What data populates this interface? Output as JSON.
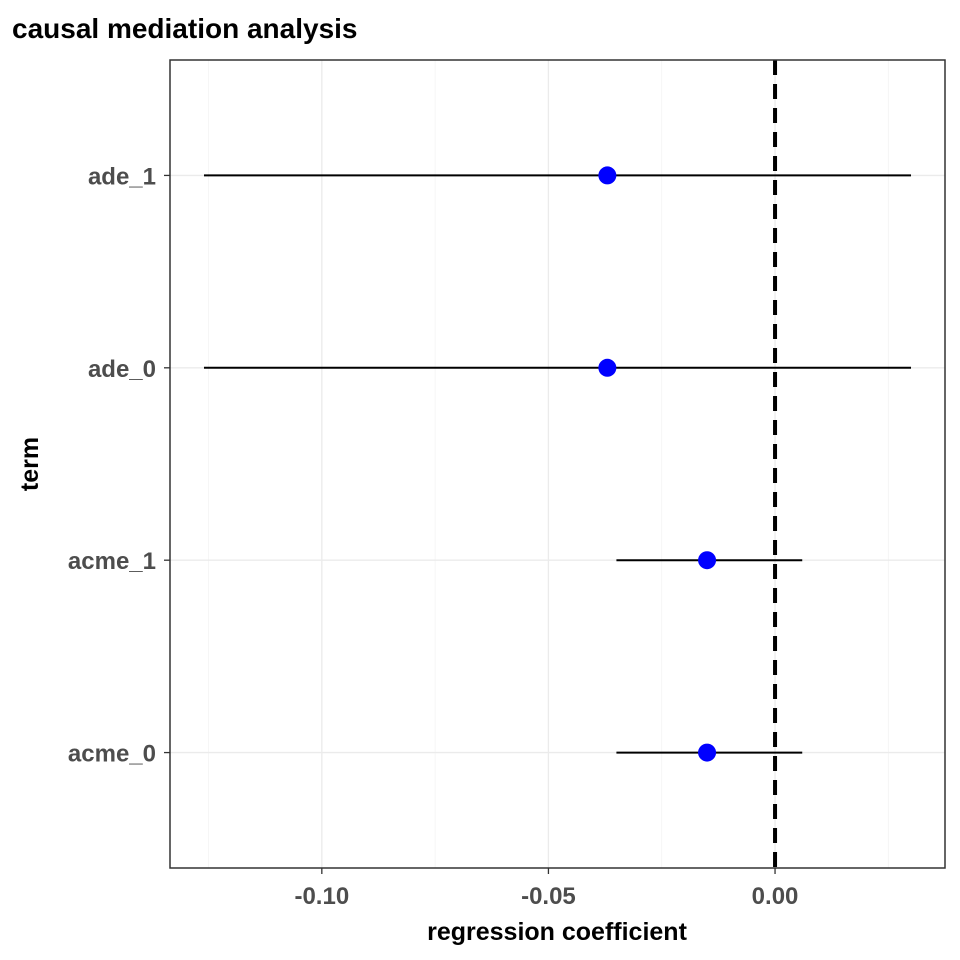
{
  "chart_data": {
    "type": "scatter",
    "subtype": "coefficient-plot",
    "title": "causal mediation analysis",
    "xlabel": "regression coefficient",
    "ylabel": "term",
    "xlim": [
      -0.1335,
      0.0375
    ],
    "x_ticks": [
      -0.1,
      -0.05,
      0.0
    ],
    "x_tick_labels": [
      "-0.10",
      "-0.05",
      "0.00"
    ],
    "categories": [
      "ade_1",
      "ade_0",
      "acme_1",
      "acme_0"
    ],
    "estimates": [
      -0.037,
      -0.037,
      -0.015,
      -0.015
    ],
    "ci_low": [
      -0.126,
      -0.126,
      -0.035,
      -0.035
    ],
    "ci_high": [
      0.03,
      0.03,
      0.006,
      0.006
    ],
    "reference_line": {
      "x": 0.0,
      "style": "dashed"
    },
    "point_color": "#0000ff",
    "errorbar_color": "#000000",
    "grid": true,
    "legend": "none"
  }
}
